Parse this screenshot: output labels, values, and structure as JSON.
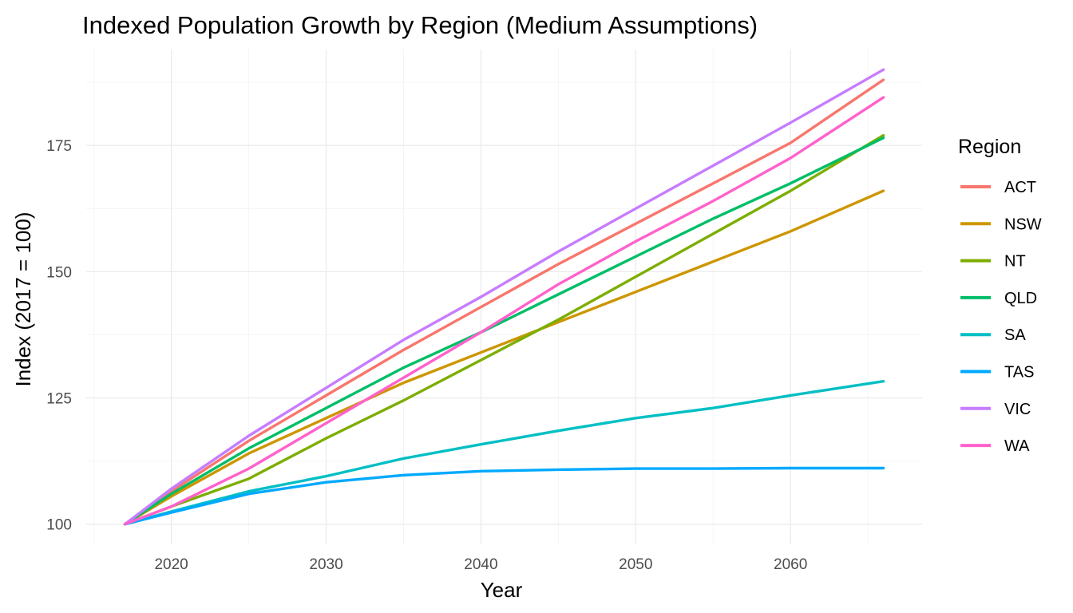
{
  "chart_data": {
    "type": "line",
    "title": "Indexed Population Growth by Region (Medium Assumptions)",
    "xlabel": "Year",
    "ylabel": "Index (2017 = 100)",
    "xlim": [
      2014.5,
      2068.5
    ],
    "ylim": [
      96,
      194
    ],
    "x_ticks": [
      2020,
      2030,
      2040,
      2050,
      2060
    ],
    "x_tick_labels": [
      "2020",
      "2030",
      "2040",
      "2050",
      "2060"
    ],
    "y_ticks": [
      100,
      125,
      150,
      175
    ],
    "y_tick_labels": [
      "100",
      "125",
      "150",
      "175"
    ],
    "grid": true,
    "legend": {
      "title": "Region",
      "position": "right"
    },
    "x": [
      2017,
      2020,
      2025,
      2030,
      2035,
      2040,
      2045,
      2050,
      2055,
      2060,
      2066
    ],
    "series": [
      {
        "name": "ACT",
        "color": "#F8766D",
        "values": [
          100,
          106.5,
          116.5,
          125.5,
          134.5,
          143,
          151.5,
          159.5,
          167.5,
          175.5,
          188
        ]
      },
      {
        "name": "NSW",
        "color": "#CD9600",
        "values": [
          100,
          105.5,
          114,
          121,
          128,
          134,
          140,
          146,
          152,
          158,
          166
        ]
      },
      {
        "name": "NT",
        "color": "#7CAE00",
        "values": [
          100,
          103.5,
          109,
          117,
          124.5,
          132.5,
          140.5,
          149,
          157.5,
          166,
          177
        ]
      },
      {
        "name": "QLD",
        "color": "#00BE67",
        "values": [
          100,
          106,
          115,
          123,
          131,
          138,
          145.5,
          153,
          160.5,
          167.5,
          176.5
        ]
      },
      {
        "name": "SA",
        "color": "#00BFC4",
        "values": [
          100,
          102.5,
          106.5,
          109.5,
          113,
          115.8,
          118.5,
          121,
          123,
          125.5,
          128.3
        ]
      },
      {
        "name": "TAS",
        "color": "#00A9FF",
        "values": [
          100,
          102.3,
          106,
          108.3,
          109.7,
          110.5,
          110.8,
          111,
          111,
          111.1,
          111.1
        ]
      },
      {
        "name": "VIC",
        "color": "#C77CFF",
        "values": [
          100,
          107,
          117.5,
          127,
          136.5,
          145,
          154,
          162.5,
          171,
          179.5,
          190
        ]
      },
      {
        "name": "WA",
        "color": "#FF61CC",
        "values": [
          100,
          103.5,
          111,
          120,
          129,
          138,
          147.5,
          156,
          164,
          172.5,
          184.5
        ]
      }
    ]
  }
}
